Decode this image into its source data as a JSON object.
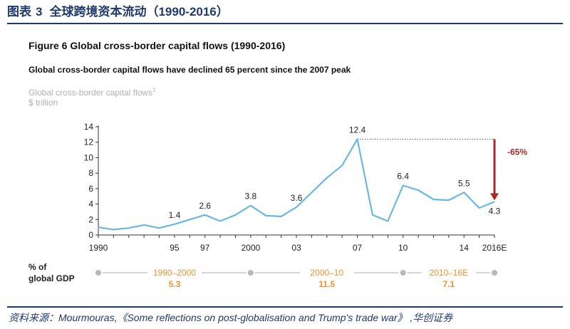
{
  "header": {
    "label": "图表",
    "number": "3",
    "title": "全球跨境资本流动（1990-2016）"
  },
  "figure": {
    "title": "Figure 6 Global cross-border capital flows (1990-2016)",
    "subtitle": "Global cross-border capital flows have declined 65 percent since the 2007 peak",
    "series_label": "Global cross-border capital flows",
    "series_label_sup": "1",
    "unit": "$ trillion"
  },
  "colors": {
    "line": "#6ab7e4",
    "arrow": "#a52a2a",
    "axis": "#333333",
    "period": "#f0922e",
    "timeline": "#c8c8c8",
    "header": "#1f3a6e"
  },
  "chart_data": {
    "type": "line",
    "title": "Global cross-border capital flows",
    "ylabel": "$ trillion",
    "xlabel": "",
    "ylim": [
      0,
      14
    ],
    "yticks": [
      0,
      2,
      4,
      6,
      8,
      10,
      12,
      14
    ],
    "x": [
      1990,
      1991,
      1992,
      1993,
      1994,
      1995,
      1996,
      1997,
      1998,
      1999,
      2000,
      2001,
      2002,
      2003,
      2004,
      2005,
      2006,
      2007,
      2008,
      2009,
      2010,
      2011,
      2012,
      2013,
      2014,
      2015,
      2016
    ],
    "values": [
      1.0,
      0.7,
      0.9,
      1.3,
      0.9,
      1.4,
      2.0,
      2.6,
      1.8,
      2.6,
      3.8,
      2.5,
      2.4,
      3.6,
      5.5,
      7.4,
      9.0,
      12.4,
      2.6,
      1.8,
      6.4,
      5.8,
      4.6,
      4.5,
      5.5,
      3.5,
      4.3
    ],
    "xtick_labels": [
      {
        "x": 1990,
        "label": "1990"
      },
      {
        "x": 1995,
        "label": "95"
      },
      {
        "x": 1997,
        "label": "97"
      },
      {
        "x": 2000,
        "label": "2000"
      },
      {
        "x": 2003,
        "label": "03"
      },
      {
        "x": 2007,
        "label": "07"
      },
      {
        "x": 2010,
        "label": "10"
      },
      {
        "x": 2014,
        "label": "14"
      },
      {
        "x": 2016,
        "label": "2016E"
      }
    ],
    "data_labels": [
      {
        "x": 1995,
        "label": "1.4"
      },
      {
        "x": 1997,
        "label": "2.6"
      },
      {
        "x": 2000,
        "label": "3.8"
      },
      {
        "x": 2003,
        "label": "3.6"
      },
      {
        "x": 2007,
        "label": "12.4"
      },
      {
        "x": 2010,
        "label": "6.4"
      },
      {
        "x": 2014,
        "label": "5.5"
      },
      {
        "x": 2016,
        "label": "4.3"
      }
    ],
    "annotation": {
      "from_x": 2007,
      "to_x": 2016,
      "from_value": 12.4,
      "to_value": 4.3,
      "label": "-65%"
    },
    "gdp_share": {
      "label_line1": "% of",
      "label_line2": "global GDP",
      "markers": [
        1990,
        2000,
        2010,
        2016
      ],
      "periods": [
        {
          "range": "1990–2000",
          "value": "5.3",
          "start": 1990,
          "end": 2000
        },
        {
          "range": "2000–10",
          "value": "11.5",
          "start": 2000,
          "end": 2010
        },
        {
          "range": "2010–16E",
          "value": "7.1",
          "start": 2010,
          "end": 2016
        }
      ]
    }
  },
  "footer": {
    "source": "资料来源：Mourmouras,《Some reflections on post-globalisation and Trump's trade war》 ,华创证券"
  }
}
